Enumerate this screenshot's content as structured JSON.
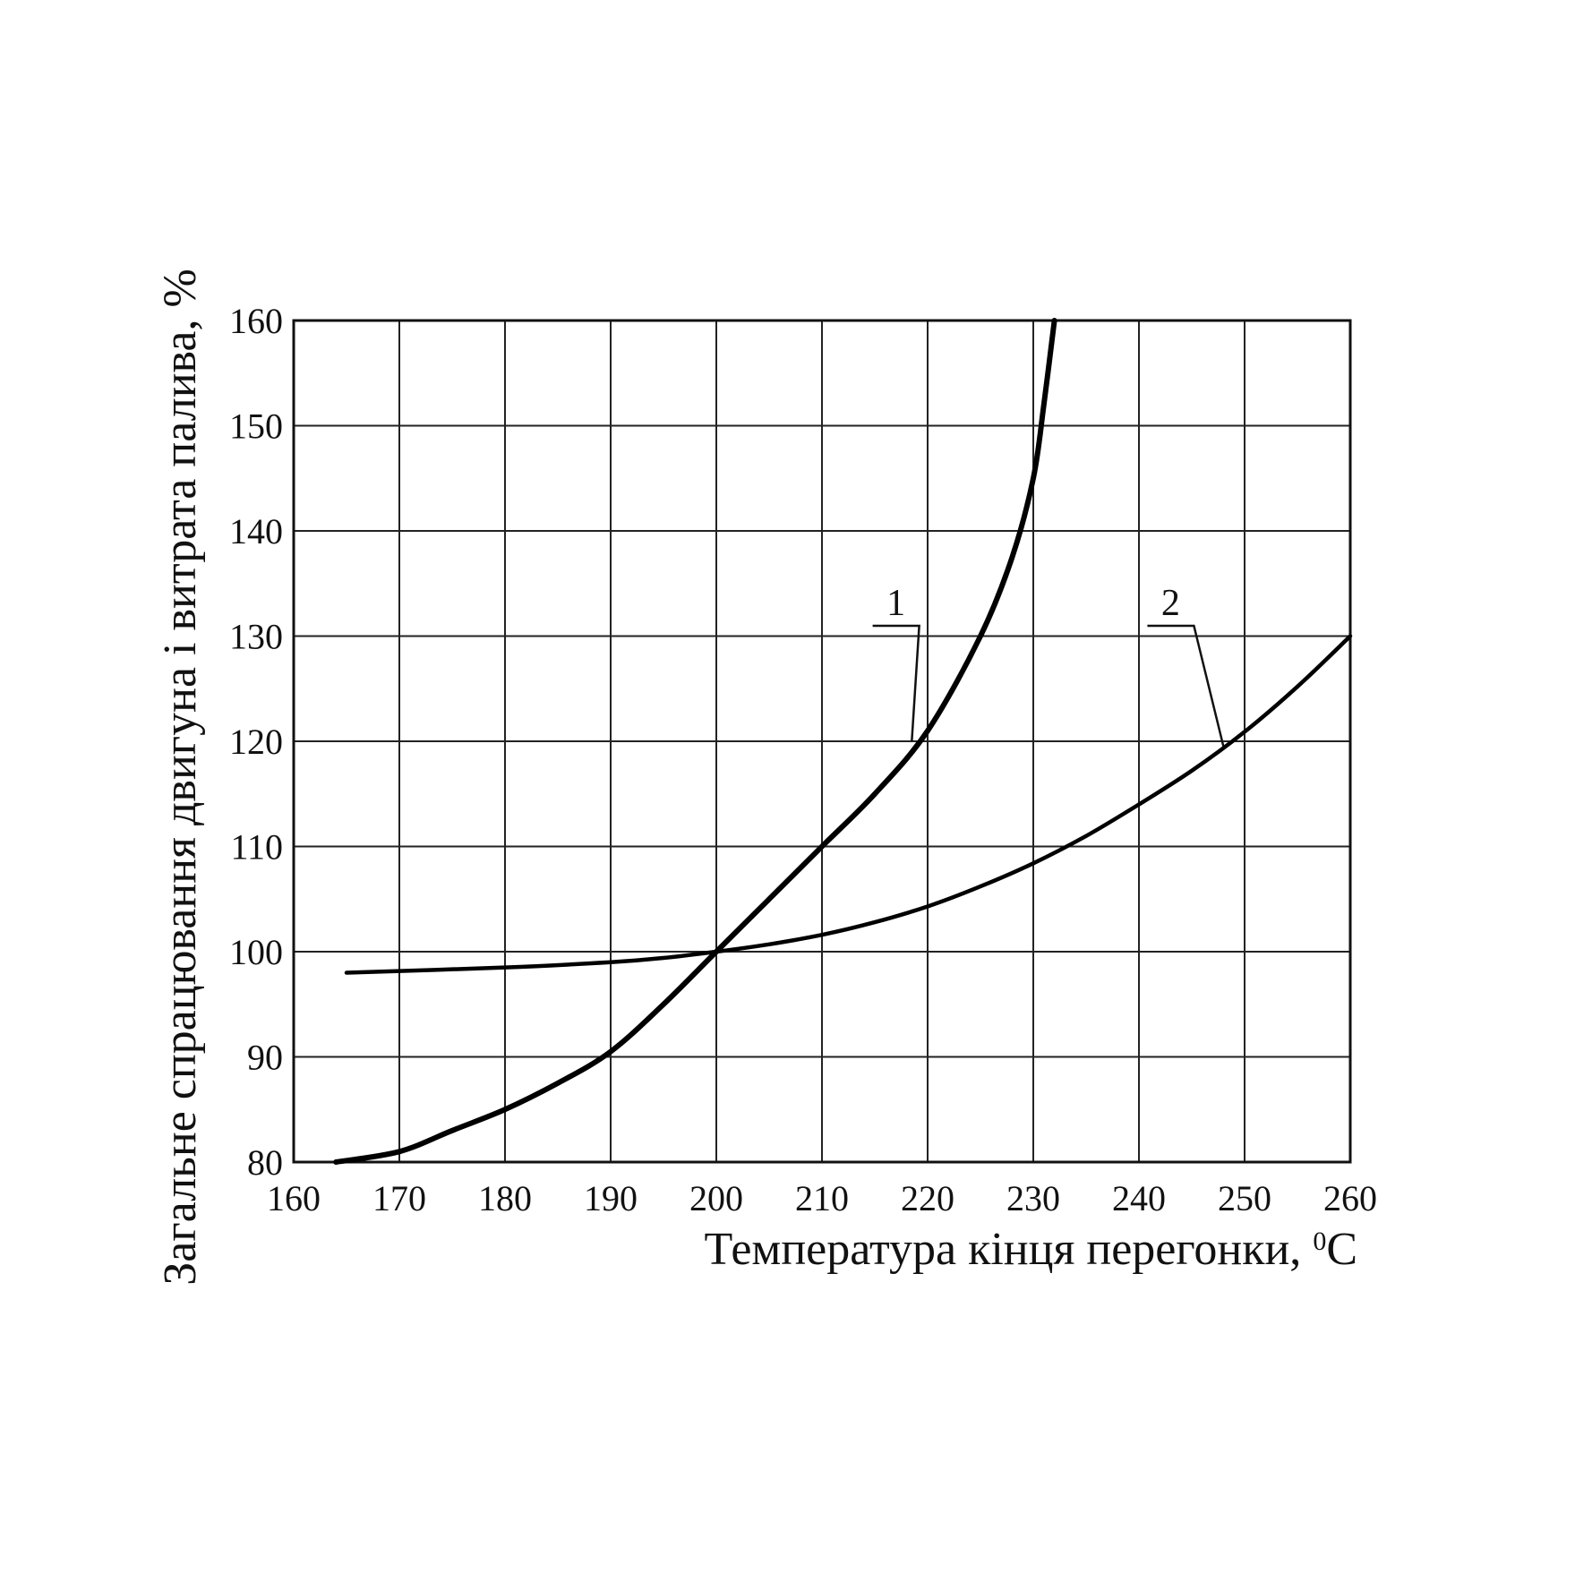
{
  "chart_data": {
    "type": "line",
    "xlabel": "Температура кінця перегонки, ",
    "xlabel_unit_sup": "0",
    "xlabel_unit": "C",
    "ylabel": "Загальне спрацювання двигуна і витрата палива, %",
    "xlim": [
      160,
      260
    ],
    "ylim": [
      80,
      160
    ],
    "xticks": [
      160,
      170,
      180,
      190,
      200,
      210,
      220,
      230,
      240,
      250,
      260
    ],
    "yticks": [
      80,
      90,
      100,
      110,
      120,
      130,
      140,
      150,
      160
    ],
    "grid": true,
    "series": [
      {
        "name": "1",
        "x": [
          164,
          170,
          175,
          180,
          185,
          190,
          195,
          200,
          205,
          210,
          215,
          220,
          225,
          228,
          230,
          231,
          232
        ],
        "y": [
          80,
          81,
          83,
          85,
          87.5,
          90.5,
          95,
          100,
          105,
          110,
          115,
          121,
          130,
          137.5,
          145,
          152,
          160
        ]
      },
      {
        "name": "2",
        "x": [
          165,
          180,
          190,
          195,
          200,
          205,
          210,
          215,
          220,
          225,
          230,
          235,
          240,
          245,
          250,
          255,
          260
        ],
        "y": [
          98,
          98.5,
          99,
          99.4,
          100,
          100.7,
          101.6,
          102.8,
          104.3,
          106.2,
          108.4,
          111,
          114,
          117.2,
          120.9,
          125.2,
          130
        ]
      }
    ]
  }
}
